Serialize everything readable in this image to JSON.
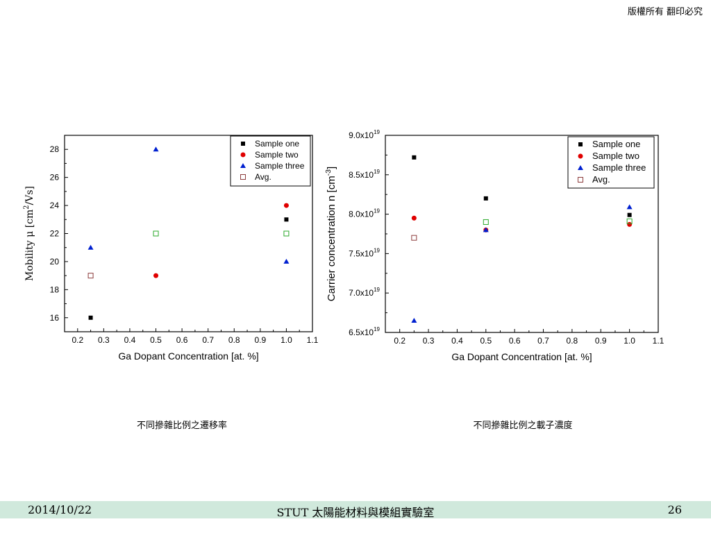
{
  "header": {
    "copyright": "版權所有 翻印必究"
  },
  "captions": {
    "left": "不同摻雜比例之遷移率",
    "right": "不同摻雜比例之載子濃度"
  },
  "footer": {
    "date": "2014/10/22",
    "title": "STUT 太陽能材料與模組實驗室",
    "page": "26"
  },
  "colors": {
    "sample_one": "#000000",
    "sample_two": "#e00000",
    "sample_three": "#0020d0",
    "avg": "#8b3a3a",
    "avg_alt": "#2aa82a"
  },
  "chart_data": [
    {
      "type": "scatter",
      "title": "",
      "xlabel": "Ga Dopant Concentration [at. %]",
      "ylabel_parts": [
        "Mobility μ [cm",
        "2",
        "/Vs]"
      ],
      "xlim": [
        0.15,
        1.1
      ],
      "ylim": [
        15,
        29
      ],
      "xticks": [
        0.2,
        0.3,
        0.4,
        0.5,
        0.6,
        0.7,
        0.8,
        0.9,
        1.0,
        1.1
      ],
      "xtick_labels": [
        "0.2",
        "0.3",
        "0.4",
        "0.5",
        "0.6",
        "0.7",
        "0.8",
        "0.9",
        "1.0",
        "1.1"
      ],
      "yticks": [
        16,
        18,
        20,
        22,
        24,
        26,
        28
      ],
      "ytick_labels": [
        "16",
        "18",
        "20",
        "22",
        "24",
        "26",
        "28"
      ],
      "legend_position": "top-right",
      "series": [
        {
          "name": "Sample one",
          "marker": "square",
          "x": [
            0.25,
            1.0
          ],
          "y": [
            16,
            23
          ]
        },
        {
          "name": "Sample two",
          "marker": "circle",
          "x": [
            0.5,
            1.0
          ],
          "y": [
            19,
            24
          ]
        },
        {
          "name": "Sample three",
          "marker": "triangle",
          "x": [
            0.25,
            0.5,
            1.0
          ],
          "y": [
            21,
            28,
            20
          ]
        },
        {
          "name": "Avg.",
          "marker": "open-square",
          "x": [
            0.25,
            0.5,
            1.0
          ],
          "y": [
            19,
            22,
            22
          ]
        }
      ]
    },
    {
      "type": "scatter",
      "title": "",
      "xlabel": "Ga Dopant Concentration [at. %]",
      "ylabel_parts": [
        "Carrier concentration n [cm",
        "-3",
        "]"
      ],
      "xlim": [
        0.15,
        1.1
      ],
      "ylim": [
        6.5e+19,
        9e+19
      ],
      "xticks": [
        0.2,
        0.3,
        0.4,
        0.5,
        0.6,
        0.7,
        0.8,
        0.9,
        1.0,
        1.1
      ],
      "xtick_labels": [
        "0.2",
        "0.3",
        "0.4",
        "0.5",
        "0.6",
        "0.7",
        "0.8",
        "0.9",
        "1.0",
        "1.1"
      ],
      "yticks": [
        6.5e+19,
        7e+19,
        7.5e+19,
        8e+19,
        8.5e+19,
        9e+19
      ],
      "ytick_mantissas": [
        "6.5x10",
        "7.0x10",
        "7.5x10",
        "8.0x10",
        "8.5x10",
        "9.0x10"
      ],
      "ytick_exponent": "19",
      "legend_position": "top-right",
      "series": [
        {
          "name": "Sample one",
          "marker": "square",
          "x": [
            0.25,
            0.5,
            1.0
          ],
          "y": [
            8.72e+19,
            8.2e+19,
            7.99e+19
          ]
        },
        {
          "name": "Sample two",
          "marker": "circle",
          "x": [
            0.25,
            0.5,
            1.0
          ],
          "y": [
            7.95e+19,
            7.8e+19,
            7.87e+19
          ]
        },
        {
          "name": "Sample three",
          "marker": "triangle",
          "x": [
            0.25,
            0.5,
            1.0
          ],
          "y": [
            6.65e+19,
            7.8e+19,
            8.09e+19
          ]
        },
        {
          "name": "Avg.",
          "marker": "open-square",
          "x": [
            0.25,
            0.5,
            1.0
          ],
          "y": [
            7.7e+19,
            7.9e+19,
            7.91e+19
          ]
        }
      ]
    }
  ]
}
